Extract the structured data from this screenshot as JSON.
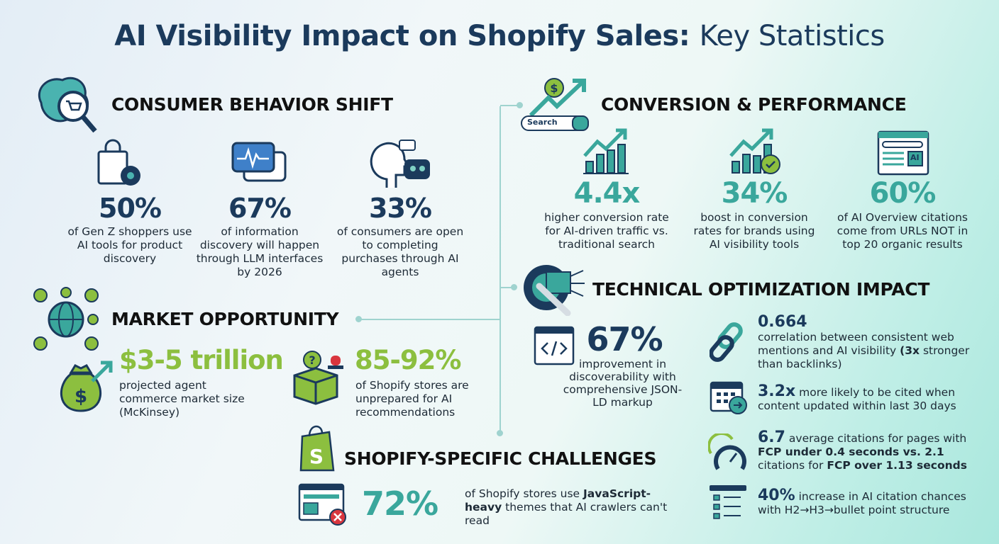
{
  "title": {
    "bold": "AI Visibility Impact on Shopify Sales:",
    "light": "Key Statistics"
  },
  "colors": {
    "navy": "#1b3a5c",
    "teal": "#3aa79c",
    "green": "#8cbf3f"
  },
  "consumer": {
    "heading": "CONSUMER BEHAVIOR SHIFT",
    "icon": "brain-magnifier-cart-icon",
    "stats": [
      {
        "value": "50%",
        "desc": "of Gen Z shoppers use AI tools for product discovery",
        "icon": "shopping-bag-gear-icon"
      },
      {
        "value": "67%",
        "desc": "of information discovery will happen through LLM interfaces by 2026",
        "icon": "chat-waveform-icon"
      },
      {
        "value": "33%",
        "desc": "of consumers are open to completing purchases through AI agents",
        "icon": "human-robot-icon"
      }
    ]
  },
  "market": {
    "heading": "MARKET OPPORTUNITY",
    "icon": "globe-dollar-network-icon",
    "stats": [
      {
        "value": "$3-5 trillion",
        "desc": "projected agent commerce market size (McKinsey)",
        "icon": "money-bag-arrow-icon"
      },
      {
        "value": "85-92%",
        "desc": "of Shopify stores are unprepared for AI recommendations",
        "icon": "box-question-alert-icon"
      }
    ]
  },
  "conversion": {
    "heading": "CONVERSION & PERFORMANCE",
    "icon": "search-growth-icon",
    "search_label": "Search",
    "stats": [
      {
        "value": "4.4x",
        "desc": "higher conversion rate for AI-driven traffic vs. traditional search",
        "icon": "bar-chart-up-icon"
      },
      {
        "value": "34%",
        "desc": "boost in conversion rates for brands using AI visibility tools",
        "icon": "bar-chart-check-icon"
      },
      {
        "value": "60%",
        "desc": "of AI Overview citations come from URLs NOT in top 20 organic results",
        "icon": "browser-ai-icon",
        "ai_label": "AI"
      }
    ]
  },
  "technical": {
    "heading": "TECHNICAL OPTIMIZATION IMPACT",
    "icon": "gear-wrench-chip-icon",
    "main": {
      "value": "67%",
      "desc": "improvement in discoverability with comprehensive JSON-LD markup",
      "icon": "code-window-icon"
    },
    "list": [
      {
        "value": "0.664",
        "desc": "correlation between consistent web mentions and AI visibility",
        "bold": "(3x",
        "desc2": "stronger than backlinks)",
        "icon": "chain-link-icon"
      },
      {
        "value": "3.2x",
        "desc": "more likely to be cited when content updated within last 30 days",
        "icon": "calendar-arrow-icon"
      },
      {
        "value": "6.7",
        "desc": "average citations for pages with",
        "bold1": "FCP under 0.4 seconds vs. 2.1",
        "desc2": "citations for",
        "bold2": "FCP over 1.13 seconds",
        "icon": "speedometer-icon"
      },
      {
        "value": "40%",
        "desc": "increase in AI citation chances with H2→H3→bullet point structure",
        "icon": "structure-list-icon"
      }
    ]
  },
  "shopify": {
    "heading": "SHOPIFY-SPECIFIC CHALLENGES",
    "icon": "shopify-bag-icon",
    "stat": {
      "value": "72%",
      "desc1": "of Shopify stores use",
      "bold": "JavaScript-heavy",
      "desc2": "themes that AI crawlers can't read",
      "icon": "browser-error-icon"
    }
  }
}
